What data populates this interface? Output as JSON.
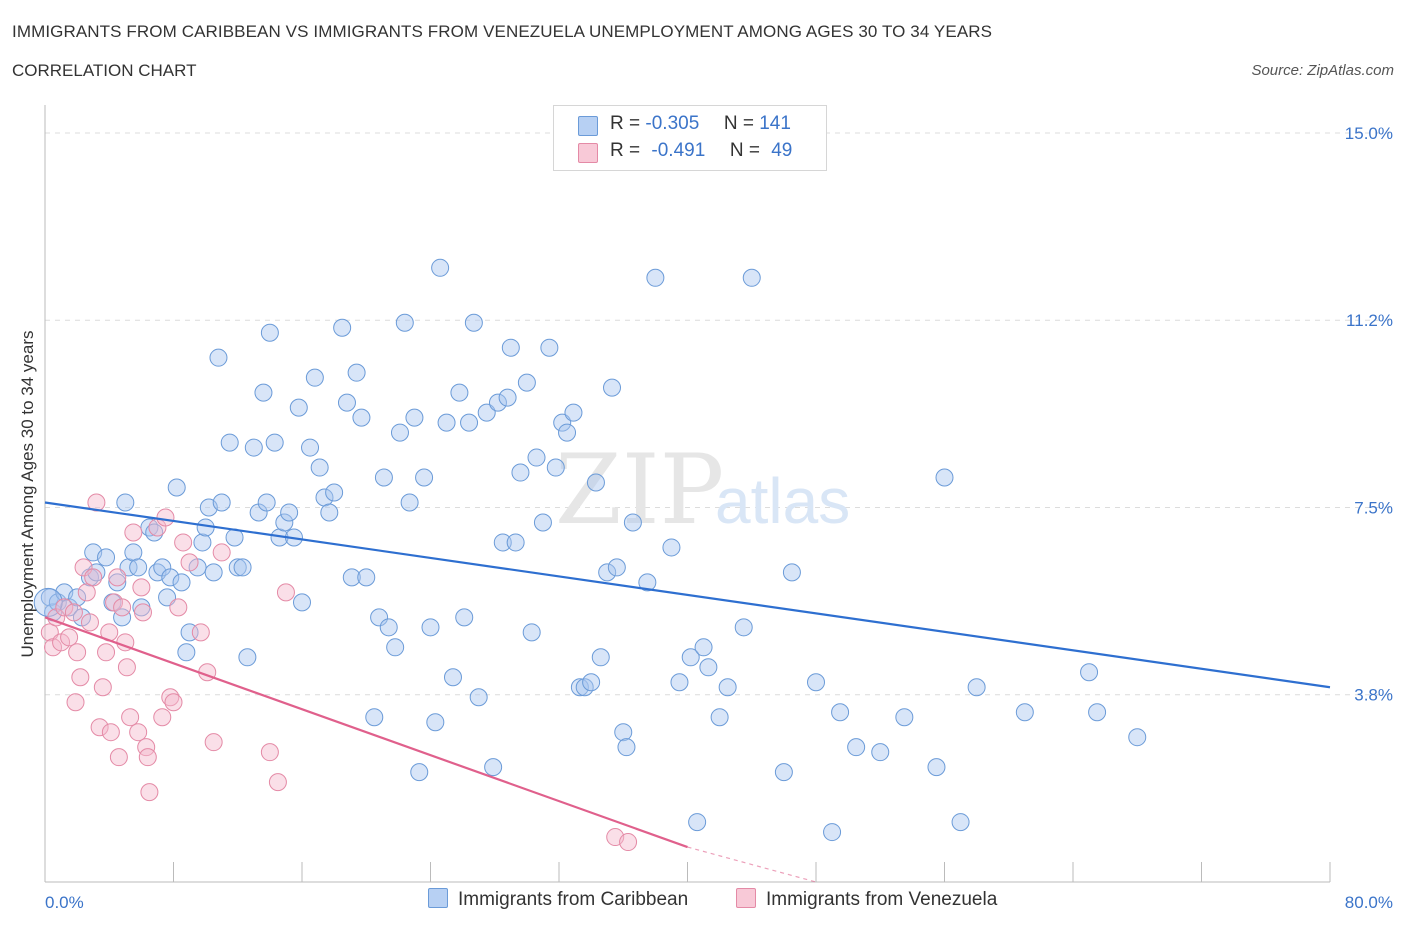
{
  "title": "IMMIGRANTS FROM CARIBBEAN VS IMMIGRANTS FROM VENEZUELA UNEMPLOYMENT AMONG AGES 30 TO 34 YEARS",
  "subtitle": "CORRELATION CHART",
  "source": "Source: ZipAtlas.com",
  "watermark": {
    "zip": "ZIP",
    "atlas": "atlas"
  },
  "legend": {
    "rows": [
      {
        "r_label": "R =",
        "r_value": "-0.305",
        "n_label": "N =",
        "n_value": "141"
      },
      {
        "r_label": "R =",
        "r_value": "-0.491",
        "n_label": "N =",
        "n_value": "49"
      }
    ]
  },
  "chart_data": {
    "type": "scatter",
    "title": "IMMIGRANTS FROM CARIBBEAN VS IMMIGRANTS FROM VENEZUELA UNEMPLOYMENT AMONG AGES 30 TO 34 YEARS",
    "xlabel": "",
    "ylabel": "Unemployment Among Ages 30 to 34 years",
    "xlim": [
      0,
      80
    ],
    "ylim": [
      0,
      15.3
    ],
    "x_tick_labels": [
      "0.0%",
      "80.0%"
    ],
    "y_tick_labels": [
      "15.0%",
      "11.2%",
      "7.5%",
      "3.8%"
    ],
    "y_ticks": [
      15.0,
      11.25,
      7.5,
      3.75
    ],
    "grid": true,
    "series": [
      {
        "name": "Immigrants from Caribbean",
        "color": "#a9c6f0",
        "edge": "#6b9bd8",
        "trend": {
          "x0": 0,
          "y0": 7.6,
          "x1": 80,
          "y1": 3.9,
          "color": "#2e6fd0"
        },
        "points": [
          [
            0.3,
            5.7
          ],
          [
            0.5,
            5.4
          ],
          [
            0.8,
            5.6
          ],
          [
            1.2,
            5.8
          ],
          [
            1.5,
            5.5
          ],
          [
            2.0,
            5.7
          ],
          [
            2.3,
            5.3
          ],
          [
            2.8,
            6.1
          ],
          [
            3.0,
            6.6
          ],
          [
            3.2,
            6.2
          ],
          [
            3.8,
            6.5
          ],
          [
            4.2,
            5.6
          ],
          [
            4.5,
            6.0
          ],
          [
            4.8,
            5.3
          ],
          [
            5.0,
            7.6
          ],
          [
            5.2,
            6.3
          ],
          [
            5.5,
            6.6
          ],
          [
            5.8,
            6.3
          ],
          [
            6.0,
            5.5
          ],
          [
            6.5,
            7.1
          ],
          [
            6.8,
            7.0
          ],
          [
            7.0,
            6.2
          ],
          [
            7.3,
            6.3
          ],
          [
            7.6,
            5.7
          ],
          [
            7.8,
            6.1
          ],
          [
            8.2,
            7.9
          ],
          [
            8.5,
            6.0
          ],
          [
            8.8,
            4.6
          ],
          [
            9.0,
            5.0
          ],
          [
            9.5,
            6.3
          ],
          [
            9.8,
            6.8
          ],
          [
            10.0,
            7.1
          ],
          [
            10.2,
            7.5
          ],
          [
            10.5,
            6.2
          ],
          [
            10.8,
            10.5
          ],
          [
            11.0,
            7.6
          ],
          [
            11.5,
            8.8
          ],
          [
            11.8,
            6.9
          ],
          [
            12.0,
            6.3
          ],
          [
            12.3,
            6.3
          ],
          [
            12.6,
            4.5
          ],
          [
            13.0,
            8.7
          ],
          [
            13.3,
            7.4
          ],
          [
            13.6,
            9.8
          ],
          [
            13.8,
            7.6
          ],
          [
            14.0,
            11.0
          ],
          [
            14.3,
            8.8
          ],
          [
            14.6,
            6.9
          ],
          [
            14.9,
            7.2
          ],
          [
            15.2,
            7.4
          ],
          [
            15.5,
            6.9
          ],
          [
            15.8,
            9.5
          ],
          [
            16.0,
            5.6
          ],
          [
            16.5,
            8.7
          ],
          [
            16.8,
            10.1
          ],
          [
            17.1,
            8.3
          ],
          [
            17.4,
            7.7
          ],
          [
            17.7,
            7.4
          ],
          [
            18.0,
            7.8
          ],
          [
            18.5,
            11.1
          ],
          [
            18.8,
            9.6
          ],
          [
            19.1,
            6.1
          ],
          [
            19.4,
            10.2
          ],
          [
            19.7,
            9.3
          ],
          [
            20.0,
            6.1
          ],
          [
            20.5,
            3.3
          ],
          [
            20.8,
            5.3
          ],
          [
            21.1,
            8.1
          ],
          [
            21.4,
            5.1
          ],
          [
            21.8,
            4.7
          ],
          [
            22.1,
            9.0
          ],
          [
            22.4,
            11.2
          ],
          [
            22.7,
            7.6
          ],
          [
            23.0,
            9.3
          ],
          [
            23.3,
            2.2
          ],
          [
            23.6,
            8.1
          ],
          [
            24.0,
            5.1
          ],
          [
            24.3,
            3.2
          ],
          [
            24.6,
            12.3
          ],
          [
            25.0,
            9.2
          ],
          [
            25.4,
            4.1
          ],
          [
            25.8,
            9.8
          ],
          [
            26.1,
            5.3
          ],
          [
            26.4,
            9.2
          ],
          [
            26.7,
            11.2
          ],
          [
            27.0,
            3.7
          ],
          [
            27.5,
            9.4
          ],
          [
            27.9,
            2.3
          ],
          [
            28.2,
            9.6
          ],
          [
            28.5,
            6.8
          ],
          [
            28.8,
            9.7
          ],
          [
            29.0,
            10.7
          ],
          [
            29.3,
            6.8
          ],
          [
            29.6,
            8.2
          ],
          [
            30.0,
            10.0
          ],
          [
            30.3,
            5.0
          ],
          [
            30.6,
            8.5
          ],
          [
            31.0,
            7.2
          ],
          [
            31.4,
            10.7
          ],
          [
            31.8,
            8.3
          ],
          [
            32.2,
            9.2
          ],
          [
            32.5,
            9.0
          ],
          [
            32.9,
            9.4
          ],
          [
            33.3,
            3.9
          ],
          [
            33.6,
            3.9
          ],
          [
            34.0,
            4.0
          ],
          [
            34.3,
            8.0
          ],
          [
            34.6,
            4.5
          ],
          [
            35.0,
            6.2
          ],
          [
            35.3,
            9.9
          ],
          [
            35.6,
            6.3
          ],
          [
            36.0,
            3.0
          ],
          [
            36.2,
            2.7
          ],
          [
            36.6,
            7.2
          ],
          [
            37.5,
            6.0
          ],
          [
            38.0,
            12.1
          ],
          [
            39.0,
            6.7
          ],
          [
            39.5,
            4.0
          ],
          [
            40.2,
            4.5
          ],
          [
            40.6,
            1.2
          ],
          [
            41.0,
            4.7
          ],
          [
            41.3,
            4.3
          ],
          [
            42.0,
            3.3
          ],
          [
            42.5,
            3.9
          ],
          [
            43.5,
            5.1
          ],
          [
            44.0,
            12.1
          ],
          [
            46.0,
            2.2
          ],
          [
            46.5,
            6.2
          ],
          [
            48.0,
            4.0
          ],
          [
            49.0,
            1.0
          ],
          [
            49.5,
            3.4
          ],
          [
            50.5,
            2.7
          ],
          [
            52.0,
            2.6
          ],
          [
            53.5,
            3.3
          ],
          [
            55.5,
            2.3
          ],
          [
            56.0,
            8.1
          ],
          [
            57.0,
            1.2
          ],
          [
            58.0,
            3.9
          ],
          [
            61.0,
            3.4
          ],
          [
            65.0,
            4.2
          ],
          [
            65.5,
            3.4
          ],
          [
            68.0,
            2.9
          ]
        ]
      },
      {
        "name": "Immigrants from Venezuela",
        "color": "#f5b8cb",
        "edge": "#e48aa6",
        "trend": {
          "x0": 0,
          "y0": 5.3,
          "x1": 40,
          "y1": 0.7,
          "dash_to": [
            48,
            -0.3
          ],
          "color": "#e0608c"
        },
        "points": [
          [
            0.3,
            5.0
          ],
          [
            0.5,
            4.7
          ],
          [
            0.7,
            5.3
          ],
          [
            1.0,
            4.8
          ],
          [
            1.2,
            5.5
          ],
          [
            1.5,
            4.9
          ],
          [
            1.8,
            5.4
          ],
          [
            1.9,
            3.6
          ],
          [
            2.0,
            4.6
          ],
          [
            2.2,
            4.1
          ],
          [
            2.4,
            6.3
          ],
          [
            2.6,
            5.8
          ],
          [
            2.8,
            5.2
          ],
          [
            3.0,
            6.1
          ],
          [
            3.2,
            7.6
          ],
          [
            3.4,
            3.1
          ],
          [
            3.6,
            3.9
          ],
          [
            3.8,
            4.6
          ],
          [
            4.0,
            5.0
          ],
          [
            4.1,
            3.0
          ],
          [
            4.3,
            5.6
          ],
          [
            4.5,
            6.1
          ],
          [
            4.6,
            2.5
          ],
          [
            4.8,
            5.5
          ],
          [
            5.0,
            4.8
          ],
          [
            5.1,
            4.3
          ],
          [
            5.3,
            3.3
          ],
          [
            5.5,
            7.0
          ],
          [
            5.8,
            3.0
          ],
          [
            6.0,
            5.9
          ],
          [
            6.1,
            5.4
          ],
          [
            6.3,
            2.7
          ],
          [
            6.4,
            2.5
          ],
          [
            6.5,
            1.8
          ],
          [
            7.0,
            7.1
          ],
          [
            7.3,
            3.3
          ],
          [
            7.5,
            7.3
          ],
          [
            7.8,
            3.7
          ],
          [
            8.0,
            3.6
          ],
          [
            8.3,
            5.5
          ],
          [
            8.6,
            6.8
          ],
          [
            9.0,
            6.4
          ],
          [
            9.7,
            5.0
          ],
          [
            10.1,
            4.2
          ],
          [
            10.5,
            2.8
          ],
          [
            11.0,
            6.6
          ],
          [
            14.0,
            2.6
          ],
          [
            14.5,
            2.0
          ],
          [
            15.0,
            5.8
          ]
        ],
        "extra_points": [
          [
            35.5,
            0.9
          ],
          [
            36.3,
            0.8
          ]
        ]
      }
    ]
  }
}
